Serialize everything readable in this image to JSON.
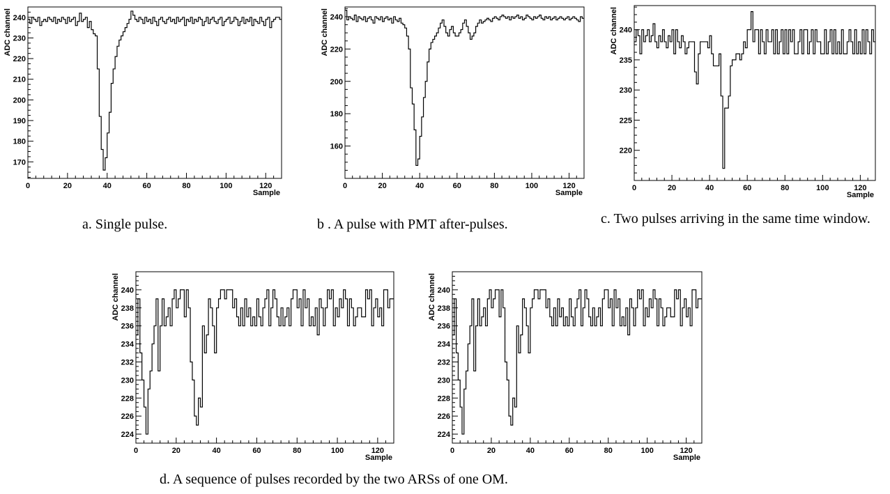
{
  "captions": {
    "a": "a. Single  pulse.",
    "b": "b . A pulse  with PMT after-pulses.",
    "c": "c. Two pulses arriving in the same time window.",
    "d": "d. A sequence of pulses recorded by the two ARSs of one OM."
  },
  "chart_data": [
    {
      "id": "a",
      "type": "line",
      "step": true,
      "xlabel": "Sample",
      "ylabel": "ADC channel",
      "xlim": [
        0,
        128
      ],
      "ylim": [
        162,
        245
      ],
      "xticks": [
        0,
        20,
        40,
        60,
        80,
        100,
        120
      ],
      "yticks": [
        170,
        180,
        190,
        200,
        210,
        220,
        230,
        240
      ],
      "series": [
        {
          "y": [
            239,
            237,
            240,
            239,
            238,
            240,
            236,
            238,
            239,
            238,
            240,
            239,
            238,
            240,
            237,
            239,
            238,
            240,
            239,
            237,
            240,
            238,
            239,
            240,
            236,
            238,
            242,
            238,
            239,
            240,
            235,
            238,
            234,
            232,
            231,
            215,
            192,
            176,
            166,
            172,
            184,
            194,
            208,
            215,
            221,
            226,
            229,
            231,
            233,
            235,
            237,
            239,
            243,
            241,
            239,
            238,
            240,
            239,
            237,
            240,
            238,
            239,
            237,
            240,
            238,
            236,
            239,
            240,
            238,
            237,
            239,
            240,
            238,
            239,
            237,
            240,
            238,
            239,
            240,
            236,
            239,
            238,
            240,
            237,
            239,
            238,
            240,
            239,
            236,
            238,
            240,
            237,
            239,
            240,
            238,
            237,
            239,
            240,
            236,
            238,
            239,
            240,
            237,
            238,
            240,
            239,
            236,
            238,
            240,
            237,
            239,
            238,
            240,
            236,
            239,
            238,
            237,
            240,
            238,
            236,
            239,
            240,
            235,
            238,
            239,
            240,
            240,
            239
          ]
        }
      ]
    },
    {
      "id": "b",
      "type": "line",
      "step": true,
      "xlabel": "Sample",
      "ylabel": "ADC channel",
      "xlim": [
        0,
        128
      ],
      "ylim": [
        140,
        246
      ],
      "xticks": [
        0,
        20,
        40,
        60,
        80,
        100,
        120
      ],
      "yticks": [
        160,
        180,
        200,
        220,
        240
      ],
      "series": [
        {
          "y": [
            244,
            238,
            240,
            239,
            238,
            241,
            237,
            240,
            239,
            238,
            240,
            237,
            239,
            240,
            238,
            236,
            240,
            239,
            238,
            240,
            237,
            239,
            240,
            238,
            239,
            236,
            240,
            238,
            237,
            239,
            236,
            235,
            233,
            228,
            220,
            196,
            186,
            170,
            148,
            152,
            166,
            178,
            190,
            200,
            212,
            220,
            224,
            226,
            228,
            230,
            233,
            236,
            238,
            234,
            230,
            228,
            232,
            234,
            230,
            228,
            228,
            230,
            232,
            236,
            238,
            234,
            230,
            226,
            228,
            230,
            234,
            236,
            238,
            236,
            237,
            238,
            239,
            238,
            237,
            239,
            240,
            239,
            238,
            240,
            241,
            240,
            239,
            240,
            238,
            240,
            239,
            240,
            241,
            239,
            240,
            238,
            239,
            241,
            240,
            239,
            238,
            240,
            239,
            240,
            241,
            239,
            238,
            240,
            239,
            240,
            238,
            239,
            240,
            238,
            239,
            240,
            239,
            238,
            239,
            240,
            238,
            239,
            240,
            239,
            238,
            237,
            240,
            239
          ]
        }
      ]
    },
    {
      "id": "c",
      "type": "line",
      "step": true,
      "xlabel": "Sample",
      "ylabel": "ADC channel",
      "xlim": [
        0,
        128
      ],
      "ylim": [
        215,
        244
      ],
      "xticks": [
        0,
        20,
        40,
        60,
        80,
        100,
        120
      ],
      "yticks": [
        220,
        225,
        230,
        235,
        240
      ],
      "series": [
        {
          "y": [
            238,
            240,
            239,
            236,
            240,
            238,
            239,
            240,
            238,
            239,
            241,
            238,
            237,
            239,
            238,
            240,
            238,
            237,
            239,
            238,
            240,
            236,
            240,
            238,
            237,
            239,
            238,
            236,
            237,
            238,
            238,
            238,
            233,
            231,
            236,
            238,
            238,
            238,
            238,
            237,
            239,
            236,
            234,
            234,
            234,
            236,
            229,
            217,
            227,
            227,
            229,
            234,
            235,
            235,
            236,
            236,
            235,
            236,
            238,
            237,
            240,
            240,
            243,
            238,
            240,
            240,
            236,
            240,
            238,
            236,
            240,
            238,
            238,
            240,
            236,
            240,
            236,
            238,
            240,
            236,
            240,
            236,
            240,
            238,
            240,
            236,
            236,
            238,
            240,
            236,
            240,
            240,
            236,
            238,
            240,
            236,
            240,
            238,
            238,
            236,
            236,
            240,
            236,
            238,
            240,
            236,
            240,
            236,
            238,
            236,
            240,
            236,
            236,
            238,
            240,
            238,
            236,
            240,
            236,
            238,
            236,
            240,
            236,
            240,
            238,
            236,
            240,
            238
          ]
        }
      ]
    },
    {
      "id": "d1",
      "type": "line",
      "step": true,
      "xlabel": "Sample",
      "ylabel": "ADC channel",
      "xlim": [
        0,
        128
      ],
      "ylim": [
        223,
        242
      ],
      "xticks": [
        0,
        20,
        40,
        60,
        80,
        100,
        120
      ],
      "yticks": [
        224,
        226,
        228,
        230,
        232,
        234,
        236,
        238,
        240
      ],
      "series": [
        {
          "y": [
            235,
            239,
            233,
            230,
            227,
            224,
            229,
            231,
            234,
            236,
            239,
            231,
            236,
            239,
            236,
            237,
            238,
            236,
            239,
            240,
            238,
            239,
            240,
            240,
            237,
            240,
            238,
            232,
            230,
            226,
            225,
            228,
            227,
            236,
            233,
            235,
            239,
            238,
            236,
            233,
            238,
            239,
            240,
            240,
            239,
            240,
            240,
            240,
            238,
            239,
            237,
            236,
            238,
            236,
            239,
            237,
            238,
            236,
            237,
            236,
            239,
            237,
            236,
            238,
            239,
            240,
            236,
            238,
            240,
            239,
            237,
            236,
            238,
            236,
            237,
            238,
            236,
            239,
            240,
            240,
            238,
            239,
            236,
            240,
            238,
            239,
            236,
            237,
            236,
            238,
            235,
            239,
            238,
            236,
            238,
            240,
            239,
            240,
            236,
            238,
            237,
            239,
            238,
            240,
            239,
            236,
            239,
            238,
            236,
            237,
            238,
            238,
            237,
            237,
            240,
            239,
            240,
            236,
            238,
            239,
            237,
            238,
            236,
            240,
            240,
            238,
            239,
            239
          ]
        }
      ]
    },
    {
      "id": "d2",
      "type": "line",
      "step": true,
      "xlabel": "Sample",
      "ylabel": "ADC channel",
      "xlim": [
        0,
        128
      ],
      "ylim": [
        223,
        242
      ],
      "xticks": [
        0,
        20,
        40,
        60,
        80,
        100,
        120
      ],
      "yticks": [
        224,
        226,
        228,
        230,
        232,
        234,
        236,
        238,
        240
      ],
      "series": [
        {
          "y": [
            235,
            239,
            233,
            230,
            227,
            224,
            229,
            231,
            234,
            236,
            239,
            231,
            236,
            239,
            236,
            237,
            238,
            236,
            239,
            240,
            238,
            239,
            240,
            240,
            237,
            240,
            238,
            232,
            230,
            226,
            225,
            228,
            227,
            236,
            233,
            235,
            239,
            238,
            236,
            233,
            238,
            239,
            240,
            240,
            239,
            240,
            240,
            240,
            238,
            239,
            237,
            236,
            238,
            236,
            239,
            237,
            238,
            236,
            237,
            236,
            239,
            237,
            236,
            238,
            239,
            240,
            236,
            238,
            240,
            239,
            237,
            236,
            238,
            236,
            237,
            238,
            236,
            239,
            240,
            240,
            238,
            239,
            236,
            240,
            238,
            239,
            236,
            237,
            236,
            238,
            235,
            239,
            238,
            236,
            238,
            240,
            239,
            240,
            236,
            238,
            237,
            239,
            238,
            240,
            239,
            236,
            239,
            238,
            236,
            237,
            238,
            238,
            237,
            237,
            240,
            239,
            240,
            236,
            238,
            239,
            237,
            238,
            236,
            240,
            240,
            238,
            239,
            239
          ]
        }
      ]
    }
  ]
}
